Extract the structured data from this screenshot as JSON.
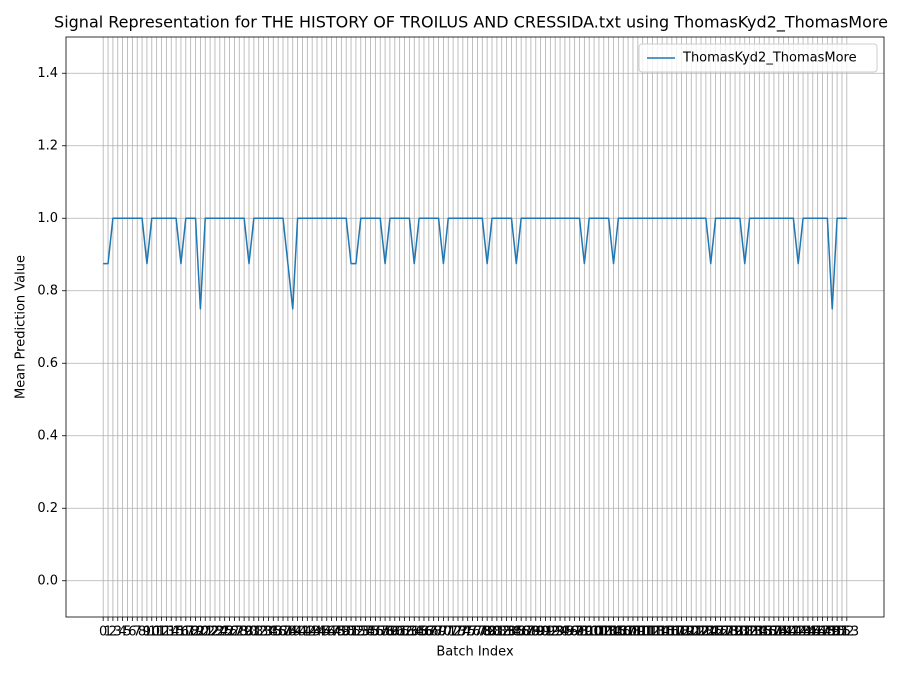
{
  "chart_data": {
    "type": "line",
    "title": "Signal Representation for THE HISTORY OF TROILUS AND CRESSIDA.txt using ThomasKyd2_ThomasMore",
    "xlabel": "Batch Index",
    "ylabel": "Mean Prediction Value",
    "x": [
      0,
      1,
      2,
      3,
      4,
      5,
      6,
      7,
      8,
      9,
      10,
      11,
      12,
      13,
      14,
      15,
      16,
      17,
      18,
      19,
      20,
      21,
      22,
      23,
      24,
      25,
      26,
      27,
      28,
      29,
      30,
      31,
      32,
      33,
      34,
      35,
      36,
      37,
      38,
      39,
      40,
      41,
      42,
      43,
      44,
      45,
      46,
      47,
      48,
      49,
      50,
      51,
      52,
      53,
      54,
      55,
      56,
      57,
      58,
      59,
      60,
      61,
      62,
      63,
      64,
      65,
      66,
      67,
      68,
      69,
      70,
      71,
      72,
      73,
      74,
      75,
      76,
      77,
      78,
      79,
      80,
      81,
      82,
      83,
      84,
      85,
      86,
      87,
      88,
      89,
      90,
      91,
      92,
      93,
      94,
      95,
      96,
      97,
      98,
      99,
      100,
      101,
      102,
      103,
      104,
      105,
      106,
      107,
      108,
      109,
      110,
      111,
      112,
      113,
      114,
      115,
      116,
      117,
      118,
      119,
      120,
      121,
      122,
      123,
      124,
      125,
      126,
      127,
      128,
      129,
      130,
      131,
      132,
      133,
      134,
      135,
      136,
      137,
      138,
      139,
      140,
      141,
      142,
      143,
      144,
      145,
      146,
      147,
      148,
      149,
      150,
      151,
      152,
      153
    ],
    "series": [
      {
        "name": "ThomasKyd2_ThomasMore",
        "color": "#1f77b4",
        "values": [
          0.875,
          0.875,
          1,
          1,
          1,
          1,
          1,
          1,
          1,
          0.875,
          1,
          1,
          1,
          1,
          1,
          1,
          0.875,
          1,
          1,
          1,
          0.75,
          1,
          1,
          1,
          1,
          1,
          1,
          1,
          1,
          1,
          0.875,
          1,
          1,
          1,
          1,
          1,
          1,
          1,
          0.875,
          0.75,
          1,
          1,
          1,
          1,
          1,
          1,
          1,
          1,
          1,
          1,
          1,
          0.875,
          0.875,
          1,
          1,
          1,
          1,
          1,
          0.875,
          1,
          1,
          1,
          1,
          1,
          0.875,
          1,
          1,
          1,
          1,
          1,
          0.875,
          1,
          1,
          1,
          1,
          1,
          1,
          1,
          1,
          0.875,
          1,
          1,
          1,
          1,
          1,
          0.875,
          1,
          1,
          1,
          1,
          1,
          1,
          1,
          1,
          1,
          1,
          1,
          1,
          1,
          0.875,
          1,
          1,
          1,
          1,
          1,
          0.875,
          1,
          1,
          1,
          1,
          1,
          1,
          1,
          1,
          1,
          1,
          1,
          1,
          1,
          1,
          1,
          1,
          1,
          1,
          1,
          0.875,
          1,
          1,
          1,
          1,
          1,
          1,
          0.875,
          1,
          1,
          1,
          1,
          1,
          1,
          1,
          1,
          1,
          1,
          0.875,
          1,
          1,
          1,
          1,
          1,
          1,
          0.75,
          1,
          1,
          1
        ]
      }
    ],
    "xlim": [
      -7.65,
      160.65
    ],
    "ylim": [
      -0.1,
      1.5
    ],
    "xticks": [
      0,
      1,
      2,
      3,
      4,
      5,
      6,
      7,
      8,
      9,
      10,
      11,
      12,
      13,
      14,
      15,
      16,
      17,
      18,
      19,
      20,
      21,
      22,
      23,
      24,
      25,
      26,
      27,
      28,
      29,
      30,
      31,
      32,
      33,
      34,
      35,
      36,
      37,
      38,
      39,
      40,
      41,
      42,
      43,
      44,
      45,
      46,
      47,
      48,
      49,
      50,
      51,
      52,
      53,
      54,
      55,
      56,
      57,
      58,
      59,
      60,
      61,
      62,
      63,
      64,
      65,
      66,
      67,
      68,
      69,
      70,
      71,
      72,
      73,
      74,
      75,
      76,
      77,
      78,
      79,
      80,
      81,
      82,
      83,
      84,
      85,
      86,
      87,
      88,
      89,
      90,
      91,
      92,
      93,
      94,
      95,
      96,
      97,
      98,
      99,
      100,
      101,
      102,
      103,
      104,
      105,
      106,
      107,
      108,
      109,
      110,
      111,
      112,
      113,
      114,
      115,
      116,
      117,
      118,
      119,
      120,
      121,
      122,
      123,
      124,
      125,
      126,
      127,
      128,
      129,
      130,
      131,
      132,
      133,
      134,
      135,
      136,
      137,
      138,
      139,
      140,
      141,
      142,
      143,
      144,
      145,
      146,
      147,
      148,
      149,
      150,
      151,
      152,
      153
    ],
    "yticks": [
      {
        "value": 0,
        "label": "0.0"
      },
      {
        "value": 0.2,
        "label": "0.2"
      },
      {
        "value": 0.4,
        "label": "0.4"
      },
      {
        "value": 0.6,
        "label": "0.6"
      },
      {
        "value": 0.8,
        "label": "0.8"
      },
      {
        "value": 1,
        "label": "1.0"
      },
      {
        "value": 1.2,
        "label": "1.2"
      },
      {
        "value": 1.4,
        "label": "1.4"
      }
    ],
    "grid": true,
    "legend": "upper right"
  }
}
